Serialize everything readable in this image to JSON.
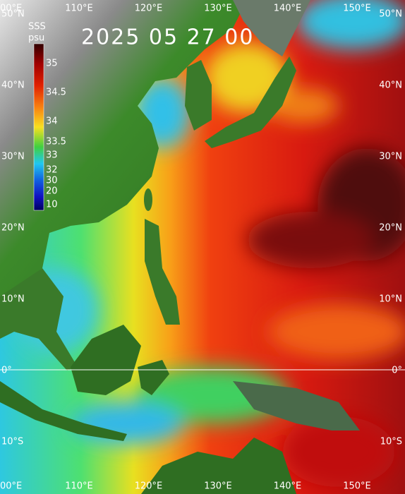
{
  "title": "2025 05 27 00",
  "colorbar": {
    "title": "SSS",
    "unit": "psu",
    "ticks": [
      35,
      34.5,
      34,
      33.5,
      33,
      32,
      30,
      20,
      10
    ]
  },
  "longitude_labels": [
    "00°E",
    "110°E",
    "120°E",
    "130°E",
    "140°E",
    "150°E"
  ],
  "latitude_labels": [
    "50°N",
    "40°N",
    "30°N",
    "20°N",
    "10°N",
    "0°",
    "10°S"
  ]
}
